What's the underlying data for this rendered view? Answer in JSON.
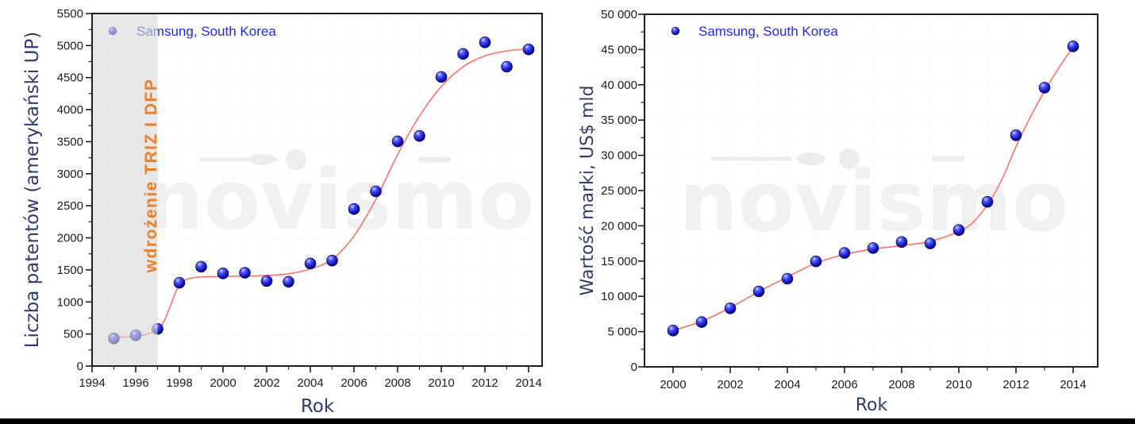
{
  "page": {
    "background": "#ffffff",
    "bottom_bar_color": "#000000"
  },
  "watermark": {
    "text": "novismo",
    "text_color": "#f1f1f1",
    "swoosh_color": "#ededed"
  },
  "colors": {
    "point_gradient": [
      "#d0d9ff",
      "#5560ee",
      "#1b1bd0",
      "#000055"
    ],
    "point_stroke": "#00004d",
    "curve": "#F9796F",
    "legend_text": "#2329E0",
    "axis_title": "#2E3D6B",
    "tick_label": "#1c1c1c",
    "spine": "#1f1f1f",
    "grid": "#f0f0f0",
    "shaded_band": "rgba(217,217,217,0.62)"
  },
  "chart_data": [
    {
      "id": "patents-chart",
      "type": "scatter",
      "title": "",
      "legend": [
        "Samsung, South Korea"
      ],
      "xlabel": "Rok",
      "ylabel": "Liczba patentów (amerykański UP)",
      "xlim": [
        1994,
        2014.62
      ],
      "ylim": [
        0,
        5500
      ],
      "grid": true,
      "legend_position": "top-left",
      "x_major_ticks": [
        1994,
        1996,
        1998,
        2000,
        2002,
        2004,
        2006,
        2008,
        2010,
        2012,
        2014
      ],
      "x_tick_labels": [
        "1994",
        "1996",
        "1998",
        "2000",
        "2002",
        "2004",
        "2006",
        "2008",
        "2010",
        "2012",
        "2014"
      ],
      "x_minor_ticks": [
        1995,
        1997,
        1999,
        2001,
        2003,
        2005,
        2007,
        2009,
        2011,
        2013
      ],
      "y_major_ticks": [
        0,
        500,
        1000,
        1500,
        2000,
        2500,
        3000,
        3500,
        4000,
        4500,
        5000,
        5500
      ],
      "y_tick_labels": [
        "0",
        "500",
        "1000",
        "1500",
        "2000",
        "2500",
        "3000",
        "3500",
        "4000",
        "4500",
        "5000",
        "5500"
      ],
      "y_minor_ticks": [
        250,
        750,
        1250,
        1750,
        2250,
        2750,
        3250,
        3750,
        4250,
        4750,
        5250
      ],
      "x": [
        1995,
        1996,
        1997,
        1998,
        1999,
        2000,
        2001,
        2002,
        2003,
        2004,
        2005,
        2006,
        2007,
        2008,
        2009,
        2010,
        2011,
        2012,
        2013,
        2014
      ],
      "y": [
        430,
        480,
        580,
        1300,
        1550,
        1445,
        1455,
        1325,
        1315,
        1600,
        1645,
        2450,
        2725,
        3505,
        3590,
        4510,
        4870,
        5050,
        4670,
        4940
      ],
      "fit_curve": [
        [
          1995,
          445
        ],
        [
          1995.5,
          452
        ],
        [
          1996,
          466
        ],
        [
          1996.5,
          497
        ],
        [
          1997,
          565
        ],
        [
          1997.3,
          700
        ],
        [
          1997.6,
          950
        ],
        [
          1997.9,
          1200
        ],
        [
          1998.2,
          1330
        ],
        [
          1998.6,
          1375
        ],
        [
          1999,
          1390
        ],
        [
          2000,
          1398
        ],
        [
          2001,
          1403
        ],
        [
          2002,
          1412
        ],
        [
          2003,
          1440
        ],
        [
          2004,
          1515
        ],
        [
          2005,
          1665
        ],
        [
          2006,
          2030
        ],
        [
          2007,
          2600
        ],
        [
          2008,
          3300
        ],
        [
          2009,
          3900
        ],
        [
          2010,
          4360
        ],
        [
          2011,
          4670
        ],
        [
          2012,
          4840
        ],
        [
          2013,
          4915
        ],
        [
          2014,
          4945
        ]
      ],
      "shaded_region": {
        "x_start": 1994,
        "x_end": 1997
      },
      "annotation": {
        "text": "wdrożenie TRIZ I DFP",
        "color": "#EC7F28",
        "x": 1997,
        "rotation": -90
      }
    },
    {
      "id": "brand-value-chart",
      "type": "scatter",
      "title": "",
      "legend": [
        "Samsung, South Korea"
      ],
      "xlabel": "Rok",
      "ylabel": "Wartość marki, US$ mld",
      "xlim": [
        1999,
        2014.86
      ],
      "ylim": [
        0,
        50000
      ],
      "grid": true,
      "legend_position": "top-left",
      "x_major_ticks": [
        2000,
        2002,
        2004,
        2006,
        2008,
        2010,
        2012,
        2014
      ],
      "x_tick_labels": [
        "2000",
        "2002",
        "2004",
        "2006",
        "2008",
        "2010",
        "2012",
        "2014"
      ],
      "x_minor_ticks": [
        2001,
        2003,
        2005,
        2007,
        2009,
        2011,
        2013
      ],
      "y_major_ticks": [
        0,
        5000,
        10000,
        15000,
        20000,
        25000,
        30000,
        35000,
        40000,
        45000,
        50000
      ],
      "y_tick_labels": [
        "0",
        "5 000",
        "10 000",
        "15 000",
        "20 000",
        "25 000",
        "30 000",
        "35 000",
        "40 000",
        "45 000",
        "50 000"
      ],
      "y_minor_ticks": [
        2500,
        7500,
        12500,
        17500,
        22500,
        27500,
        32500,
        37500,
        42500,
        47500
      ],
      "x": [
        2000,
        2001,
        2002,
        2003,
        2004,
        2005,
        2006,
        2007,
        2008,
        2009,
        2010,
        2011,
        2012,
        2013,
        2014
      ],
      "y": [
        5150,
        6350,
        8300,
        10700,
        12500,
        14950,
        16150,
        16850,
        17700,
        17500,
        19400,
        23400,
        32850,
        39600,
        45450
      ],
      "fit_curve": [
        [
          2000,
          5150
        ],
        [
          2001,
          6450
        ],
        [
          2002,
          8400
        ],
        [
          2003,
          10650
        ],
        [
          2004,
          12750
        ],
        [
          2005,
          14700
        ],
        [
          2006,
          15950
        ],
        [
          2007,
          16700
        ],
        [
          2008,
          17200
        ],
        [
          2009,
          17800
        ],
        [
          2010,
          19200
        ],
        [
          2010.5,
          20500
        ],
        [
          2011,
          23000
        ],
        [
          2011.5,
          26500
        ],
        [
          2012,
          31200
        ],
        [
          2012.5,
          35400
        ],
        [
          2013,
          39100
        ],
        [
          2013.5,
          42400
        ],
        [
          2014,
          45350
        ]
      ],
      "shaded_region": null,
      "annotation": null
    }
  ]
}
